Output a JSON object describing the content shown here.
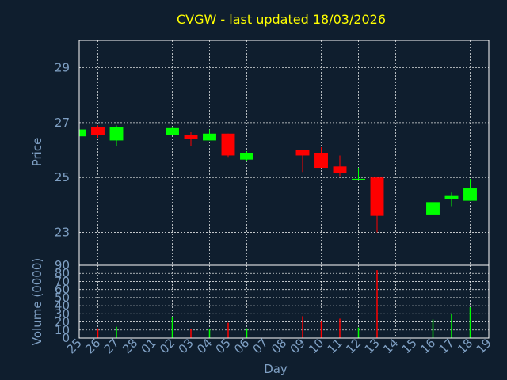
{
  "chart_data": [
    {
      "type": "candlestick",
      "title": "CVGW - last updated 18/03/2026",
      "ylabel": "Price",
      "ylim": [
        21.8,
        30.0
      ],
      "yticks": [
        23,
        25,
        27,
        29
      ],
      "grid": true,
      "colors": {
        "up": "#00ff00",
        "down": "#ff0000",
        "frame": "#ffffff",
        "background": "#0f1e2e"
      },
      "candles": [
        {
          "day": "25",
          "open": 26.5,
          "high": 26.75,
          "low": 26.5,
          "close": 26.75
        },
        {
          "day": "26",
          "open": 26.85,
          "high": 26.9,
          "low": 26.45,
          "close": 26.55
        },
        {
          "day": "27",
          "open": 26.35,
          "high": 26.9,
          "low": 26.15,
          "close": 26.85
        },
        {
          "day": "02",
          "open": 26.55,
          "high": 26.85,
          "low": 26.55,
          "close": 26.8
        },
        {
          "day": "03",
          "open": 26.55,
          "high": 26.65,
          "low": 26.15,
          "close": 26.4
        },
        {
          "day": "04",
          "open": 26.35,
          "high": 26.75,
          "low": 26.35,
          "close": 26.6
        },
        {
          "day": "05",
          "open": 26.6,
          "high": 26.6,
          "low": 25.75,
          "close": 25.8
        },
        {
          "day": "06",
          "open": 25.65,
          "high": 25.95,
          "low": 25.6,
          "close": 25.9
        },
        {
          "day": "09",
          "open": 26.0,
          "high": 26.0,
          "low": 25.2,
          "close": 25.8
        },
        {
          "day": "10",
          "open": 25.9,
          "high": 26.1,
          "low": 25.35,
          "close": 25.35
        },
        {
          "day": "11",
          "open": 25.4,
          "high": 25.8,
          "low": 25.05,
          "close": 25.15
        },
        {
          "day": "12",
          "open": 24.9,
          "high": 25.35,
          "low": 24.9,
          "close": 24.95
        },
        {
          "day": "13",
          "open": 25.0,
          "high": 25.0,
          "low": 23.0,
          "close": 23.6
        },
        {
          "day": "16",
          "open": 23.65,
          "high": 24.35,
          "low": 23.65,
          "close": 24.1
        },
        {
          "day": "17",
          "open": 24.2,
          "high": 24.45,
          "low": 23.95,
          "close": 24.35
        },
        {
          "day": "18",
          "open": 24.15,
          "high": 24.95,
          "low": 24.15,
          "close": 24.6
        }
      ]
    },
    {
      "type": "bar",
      "xlabel": "Day",
      "ylabel": "Volume (0000)",
      "ylim": [
        0,
        90
      ],
      "yticks": [
        0,
        10,
        20,
        30,
        40,
        50,
        60,
        70,
        80,
        90
      ],
      "categories": [
        "25",
        "26",
        "27",
        "28",
        "01",
        "02",
        "03",
        "04",
        "05",
        "06",
        "07",
        "08",
        "09",
        "10",
        "11",
        "12",
        "13",
        "14",
        "15",
        "16",
        "17",
        "18",
        "19"
      ],
      "values": [
        0,
        12,
        14,
        0,
        0,
        26,
        11,
        11,
        19,
        12,
        0,
        0,
        27,
        21,
        24,
        13,
        84,
        0,
        0,
        23,
        30,
        38,
        0
      ],
      "bar_colors": [
        "#00ff00",
        "#ff0000",
        "#00ff00",
        "#00ff00",
        "#00ff00",
        "#00ff00",
        "#ff0000",
        "#00ff00",
        "#ff0000",
        "#00ff00",
        "#00ff00",
        "#00ff00",
        "#ff0000",
        "#ff0000",
        "#ff0000",
        "#00ff00",
        "#ff0000",
        "#00ff00",
        "#00ff00",
        "#00ff00",
        "#00ff00",
        "#00ff00",
        "#00ff00"
      ]
    }
  ]
}
